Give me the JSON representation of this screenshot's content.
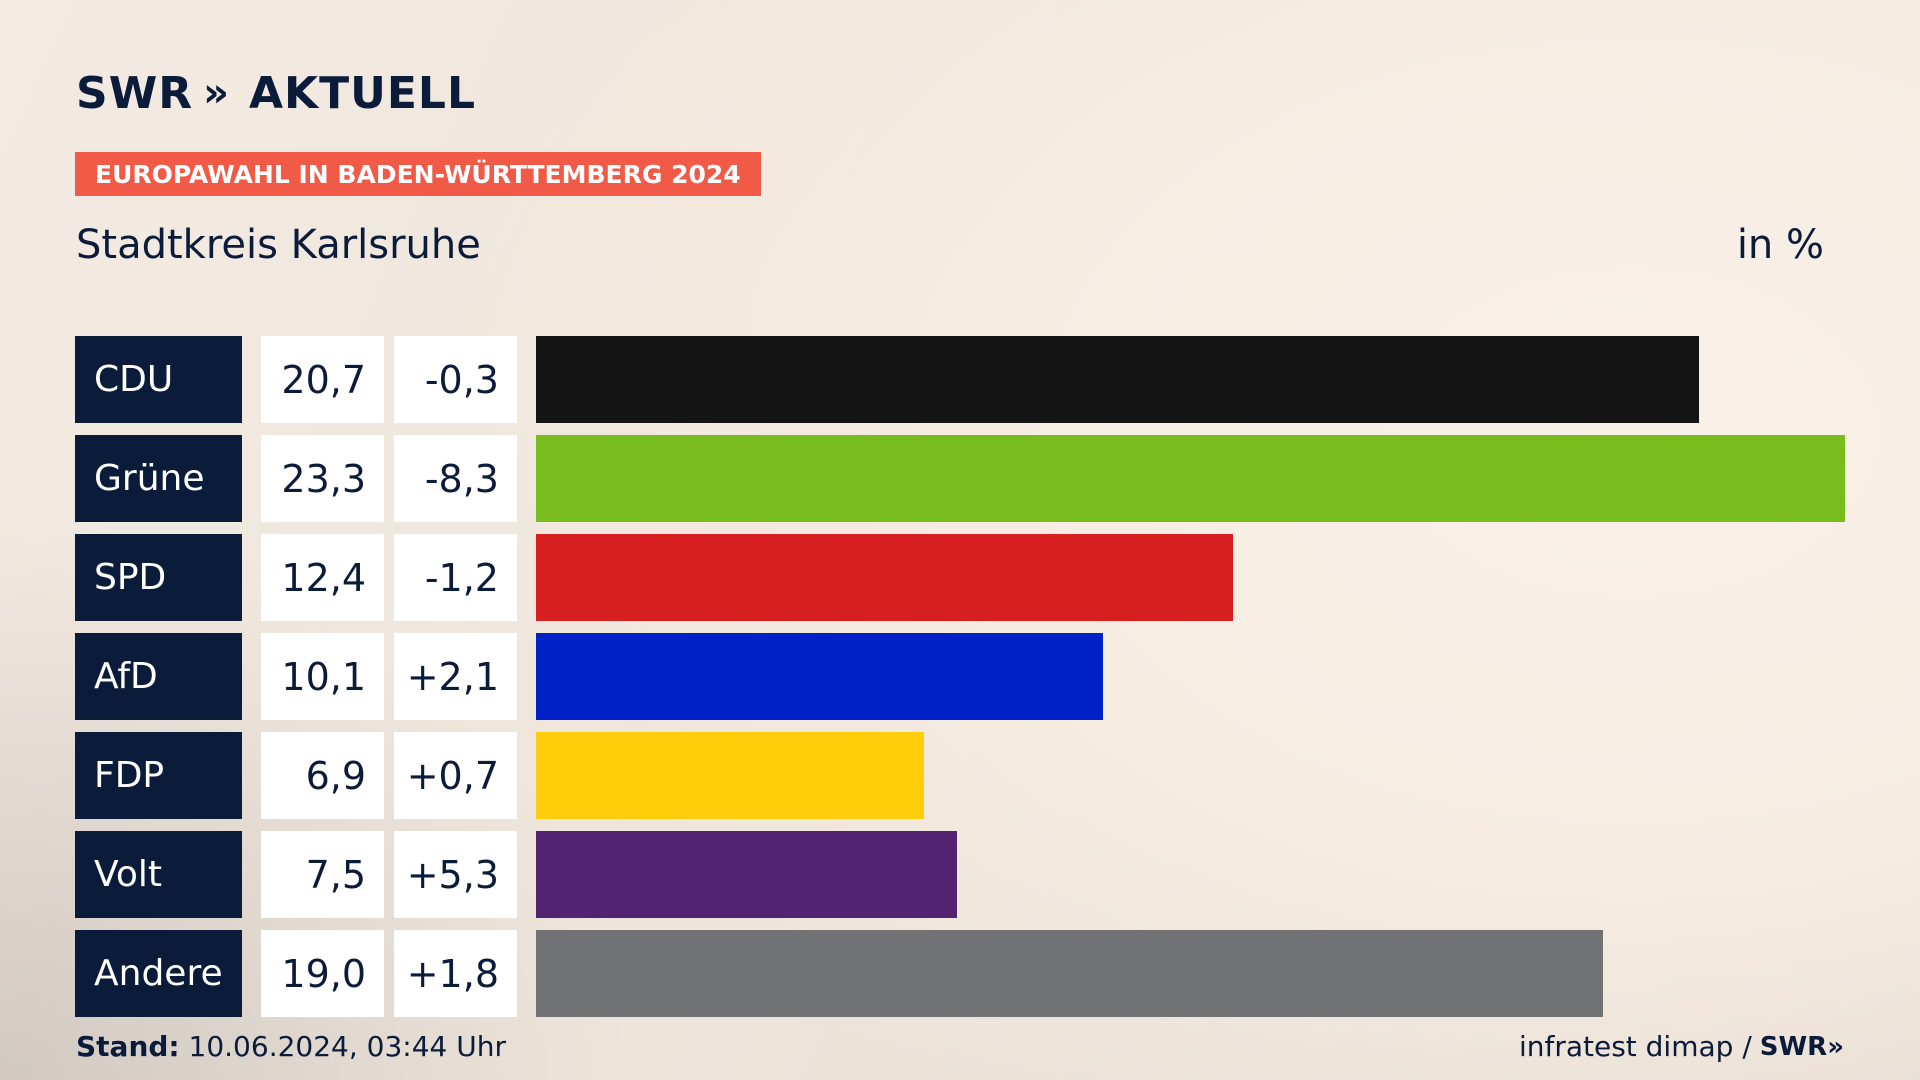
{
  "brand": {
    "name": "SWR",
    "chevrons": "»",
    "product": "AKTUELL"
  },
  "tag": "EUROPAWAHL IN BADEN-WÜRTTEMBERG 2024",
  "subtitle": "Stadtkreis Karlsruhe",
  "unit": "in %",
  "footer": {
    "stand_label": "Stand:",
    "stand_value": "10.06.2024, 03:44 Uhr",
    "source": "infratest dimap /",
    "source_brand": "SWR",
    "source_chevrons": "»"
  },
  "chart_data": {
    "type": "bar",
    "orientation": "horizontal",
    "categories": [
      "CDU",
      "Grüne",
      "SPD",
      "AfD",
      "FDP",
      "Volt",
      "Andere"
    ],
    "values": [
      20.7,
      23.3,
      12.4,
      10.1,
      6.9,
      7.5,
      19.0
    ],
    "value_labels": [
      "20,7",
      "23,3",
      "12,4",
      "10,1",
      "6,9",
      "7,5",
      "19,0"
    ],
    "changes": [
      "-0,3",
      "-8,3",
      "-1,2",
      "+2,1",
      "+0,7",
      "+5,3",
      "+1,8"
    ],
    "colors": [
      "#141414",
      "#78bc1e",
      "#d71f1f",
      "#0021c8",
      "#ffcd0a",
      "#512370",
      "#717274"
    ],
    "xlim": [
      0,
      23.3
    ]
  }
}
